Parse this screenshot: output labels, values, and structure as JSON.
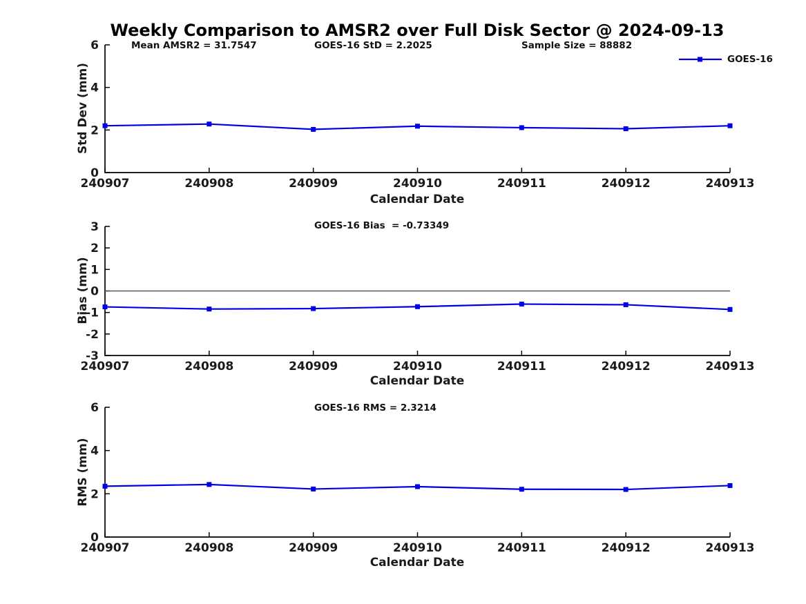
{
  "title": "Weekly Comparison to AMSR2 over Full Disk Sector @ 2024-09-13",
  "legend": {
    "label": "GOES-16"
  },
  "colors": {
    "line": "#0000e6",
    "zero_line": "#5a5a5a",
    "axis": "#000000"
  },
  "chart_data": [
    {
      "type": "line",
      "subplot": "std-dev",
      "x_categories": [
        "240907",
        "240908",
        "240909",
        "240910",
        "240911",
        "240912",
        "240913"
      ],
      "series": [
        {
          "name": "GOES-16",
          "values": [
            2.2,
            2.28,
            2.03,
            2.18,
            2.11,
            2.06,
            2.2
          ]
        }
      ],
      "xlabel": "Calendar Date",
      "ylabel": "Std Dev (mm)",
      "ylim": [
        0,
        6
      ],
      "yticks": [
        0,
        2,
        4,
        6
      ],
      "zero_line": false,
      "legend_position": "top-right",
      "grid": false,
      "annotations": [
        "Mean AMSR2 = 31.7547",
        "GOES-16 StD = 2.2025",
        "Sample Size = 88882"
      ]
    },
    {
      "type": "line",
      "subplot": "bias",
      "x_categories": [
        "240907",
        "240908",
        "240909",
        "240910",
        "240911",
        "240912",
        "240913"
      ],
      "series": [
        {
          "name": "GOES-16",
          "values": [
            -0.74,
            -0.84,
            -0.82,
            -0.73,
            -0.61,
            -0.64,
            -0.86
          ]
        }
      ],
      "xlabel": "Calendar Date",
      "ylabel": "Bias (mm)",
      "ylim": [
        -3,
        3
      ],
      "yticks": [
        -3,
        -2,
        -1,
        0,
        1,
        2,
        3
      ],
      "zero_line": true,
      "grid": false,
      "annotations": [
        "GOES-16 Bias  = -0.73349"
      ]
    },
    {
      "type": "line",
      "subplot": "rms",
      "x_categories": [
        "240907",
        "240908",
        "240909",
        "240910",
        "240911",
        "240912",
        "240913"
      ],
      "series": [
        {
          "name": "GOES-16",
          "values": [
            2.35,
            2.43,
            2.22,
            2.33,
            2.21,
            2.2,
            2.38
          ]
        }
      ],
      "xlabel": "Calendar Date",
      "ylabel": "RMS (mm)",
      "ylim": [
        0,
        6
      ],
      "yticks": [
        0,
        2,
        4,
        6
      ],
      "zero_line": false,
      "grid": false,
      "annotations": [
        "GOES-16 RMS = 2.3214"
      ]
    }
  ]
}
